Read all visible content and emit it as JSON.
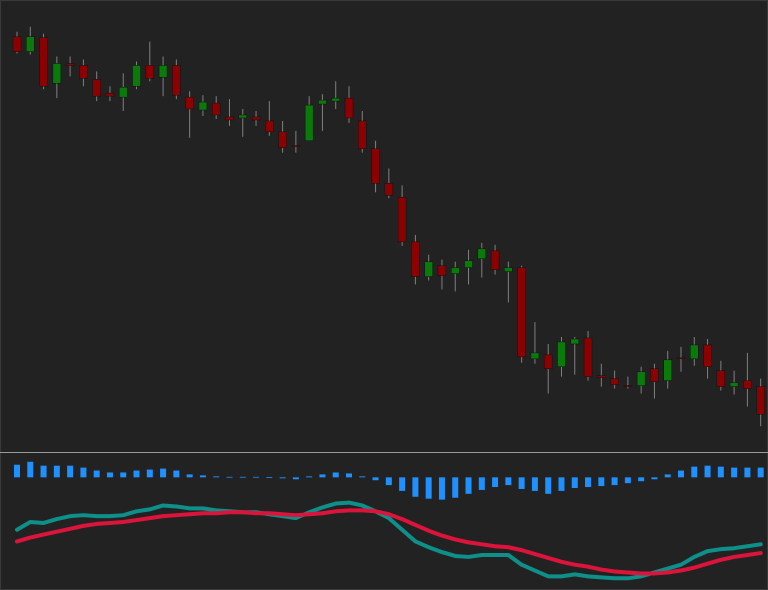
{
  "chart_data": [
    {
      "type": "candlestick",
      "up_color": "#0a7a0a",
      "down_color": "#8b0000",
      "wick_color": "#808080",
      "ylim": [
        8,
        460
      ],
      "open": [
        425,
        410,
        424,
        378,
        398,
        396,
        382,
        368,
        364,
        375,
        396,
        384,
        396,
        364,
        351,
        358,
        344,
        343,
        344,
        340,
        329,
        315,
        320,
        357,
        360,
        363,
        340,
        312,
        277,
        263,
        218,
        183,
        194,
        186,
        192,
        201,
        209,
        188,
        192,
        100,
        104,
        92,
        115,
        121,
        83,
        80,
        73,
        73,
        90,
        78,
        101,
        100,
        114,
        88,
        72,
        78,
        72
      ],
      "high": [
        430,
        435,
        428,
        405,
        405,
        402,
        390,
        375,
        388,
        400,
        420,
        405,
        402,
        370,
        366,
        365,
        362,
        352,
        350,
        360,
        340,
        330,
        365,
        367,
        380,
        375,
        350,
        320,
        292,
        275,
        225,
        205,
        200,
        198,
        210,
        217,
        215,
        198,
        194,
        137,
        115,
        122,
        122,
        128,
        95,
        88,
        82,
        92,
        95,
        108,
        112,
        122,
        120,
        98,
        88,
        106,
        80
      ],
      "low": [
        408,
        407,
        372,
        363,
        385,
        375,
        360,
        360,
        350,
        372,
        380,
        365,
        362,
        323,
        345,
        342,
        335,
        324,
        335,
        325,
        308,
        308,
        320,
        330,
        352,
        338,
        308,
        268,
        262,
        214,
        175,
        179,
        170,
        168,
        175,
        182,
        185,
        157,
        96,
        95,
        65,
        82,
        84,
        78,
        72,
        70,
        70,
        65,
        60,
        70,
        87,
        93,
        80,
        68,
        64,
        52,
        32
      ],
      "close": [
        410,
        425,
        375,
        398,
        396,
        383,
        365,
        365,
        374,
        396,
        383,
        396,
        366,
        352,
        359,
        346,
        341,
        346,
        341,
        329,
        313,
        314,
        356,
        361,
        363,
        343,
        312,
        277,
        265,
        218,
        183,
        198,
        184,
        192,
        199,
        211,
        190,
        192,
        102,
        106,
        90,
        117,
        120,
        82,
        81,
        74,
        72,
        87,
        77,
        99,
        100,
        114,
        92,
        72,
        76,
        70,
        44
      ]
    },
    {
      "type": "macd",
      "ylim": [
        -114,
        23
      ],
      "histogram": {
        "color": "#1e90ff",
        "values": [
          13,
          16,
          12,
          12,
          12,
          10,
          7,
          5,
          5,
          7,
          8,
          9,
          7,
          3,
          2,
          1,
          0.5,
          0.5,
          0.5,
          0.3,
          -1,
          -2,
          1,
          3,
          5,
          4,
          1,
          -3,
          -8,
          -14,
          -20,
          -22,
          -23,
          -21,
          -17,
          -13,
          -10,
          -8,
          -12,
          -14,
          -17,
          -14,
          -11,
          -10,
          -9,
          -8,
          -6,
          -4,
          -2,
          3,
          7,
          11,
          12,
          11,
          10,
          10,
          10
        ]
      },
      "series": [
        {
          "color": "#0e8f8a",
          "values": [
            -54,
            -46,
            -47,
            -43,
            -40,
            -39,
            -40,
            -40,
            -39,
            -35,
            -33,
            -29,
            -30,
            -32,
            -32,
            -34,
            -35,
            -36,
            -36,
            -38,
            -40,
            -42,
            -36,
            -31,
            -27,
            -26,
            -29,
            -35,
            -42,
            -54,
            -66,
            -72,
            -77,
            -81,
            -82,
            -80,
            -80,
            -80,
            -90,
            -96,
            -102,
            -102,
            -100,
            -102,
            -103,
            -104,
            -104,
            -102,
            -98,
            -94,
            -90,
            -82,
            -76,
            -74,
            -73,
            -71,
            -69
          ]
        },
        {
          "color": "#dc143c",
          "values": [
            -66,
            -62,
            -59,
            -56,
            -53,
            -50,
            -48,
            -47,
            -46,
            -44,
            -42,
            -40,
            -39,
            -38,
            -37,
            -37,
            -36,
            -36,
            -37,
            -37,
            -38,
            -39,
            -38,
            -37,
            -35,
            -34,
            -34,
            -35,
            -38,
            -43,
            -49,
            -55,
            -60,
            -64,
            -67,
            -69,
            -71,
            -72,
            -75,
            -79,
            -83,
            -87,
            -90,
            -92,
            -95,
            -97,
            -98,
            -99,
            -99,
            -98,
            -96,
            -93,
            -89,
            -85,
            -82,
            -80,
            -78
          ]
        }
      ]
    }
  ]
}
